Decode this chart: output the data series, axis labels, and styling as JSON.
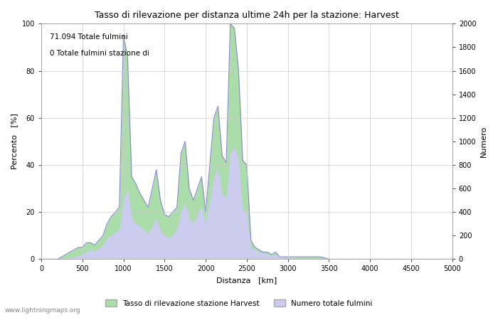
{
  "title": "Tasso di rilevazione per distanza ultime 24h per la stazione: Harvest",
  "xlabel": "Distanza   [km]",
  "ylabel_left": "Percento   [%]",
  "ylabel_right": "Numero",
  "annotation_line1": "71.094 Totale fulmini",
  "annotation_line2": "0 Totale fulmini stazione di",
  "legend_label1": "Tasso di rilevazione stazione Harvest",
  "legend_label2": "Numero totale fulmini",
  "xlim": [
    0,
    5000
  ],
  "ylim_left": [
    0,
    100
  ],
  "ylim_right": [
    0,
    2000
  ],
  "watermark": "www.lightningmaps.org",
  "line_color": "#8888cc",
  "fill_green_color": "#aaddaa",
  "fill_blue_color": "#ccccee",
  "background_color": "#ffffff",
  "grid_color": "#cccccc",
  "x_ticks": [
    0,
    500,
    1000,
    1500,
    2000,
    2500,
    3000,
    3500,
    4000,
    4500,
    5000
  ],
  "y_left_ticks": [
    0,
    20,
    40,
    60,
    80,
    100
  ],
  "y_right_ticks": [
    0,
    200,
    400,
    600,
    800,
    1000,
    1200,
    1400,
    1600,
    1800,
    2000
  ],
  "distances": [
    0,
    50,
    100,
    150,
    200,
    250,
    300,
    350,
    400,
    450,
    500,
    550,
    600,
    650,
    700,
    750,
    800,
    850,
    900,
    950,
    1000,
    1050,
    1100,
    1150,
    1200,
    1250,
    1300,
    1350,
    1400,
    1450,
    1500,
    1550,
    1600,
    1650,
    1700,
    1750,
    1800,
    1850,
    1900,
    1950,
    2000,
    2050,
    2100,
    2150,
    2200,
    2250,
    2300,
    2350,
    2400,
    2450,
    2500,
    2550,
    2600,
    2650,
    2700,
    2750,
    2800,
    2850,
    2900,
    2950,
    3000,
    3050,
    3100,
    3200,
    3300,
    3400,
    3500,
    3600,
    3700,
    3800,
    3900,
    4000,
    4100,
    4200,
    4300,
    4400,
    4500,
    4600,
    4700,
    4800,
    4900,
    5000
  ],
  "percent_values": [
    0,
    0,
    0,
    0,
    0,
    1,
    2,
    3,
    4,
    5,
    5,
    7,
    7,
    6,
    8,
    10,
    15,
    18,
    20,
    22,
    95,
    86,
    35,
    32,
    28,
    25,
    22,
    30,
    38,
    25,
    19,
    18,
    20,
    22,
    45,
    50,
    30,
    25,
    30,
    35,
    20,
    40,
    60,
    65,
    44,
    41,
    100,
    98,
    80,
    42,
    40,
    8,
    5,
    4,
    3,
    3,
    2,
    3,
    1,
    1,
    1,
    1,
    1,
    1,
    1,
    1,
    0,
    0,
    0,
    0,
    0,
    0,
    0,
    0,
    0,
    0,
    0,
    0,
    0,
    0,
    0,
    0
  ],
  "count_values": [
    0,
    0,
    0,
    0,
    0,
    5,
    10,
    15,
    20,
    30,
    40,
    60,
    80,
    70,
    90,
    120,
    180,
    200,
    230,
    250,
    500,
    600,
    350,
    300,
    280,
    250,
    220,
    280,
    350,
    240,
    200,
    180,
    210,
    250,
    400,
    480,
    350,
    300,
    380,
    450,
    300,
    500,
    700,
    780,
    560,
    520,
    900,
    950,
    850,
    430,
    380,
    100,
    80,
    60,
    50,
    40,
    30,
    40,
    20,
    15,
    15,
    15,
    10,
    10,
    10,
    10,
    5,
    5,
    5,
    5,
    5,
    5,
    5,
    5,
    5,
    5,
    5,
    5,
    5,
    5,
    5,
    5
  ]
}
